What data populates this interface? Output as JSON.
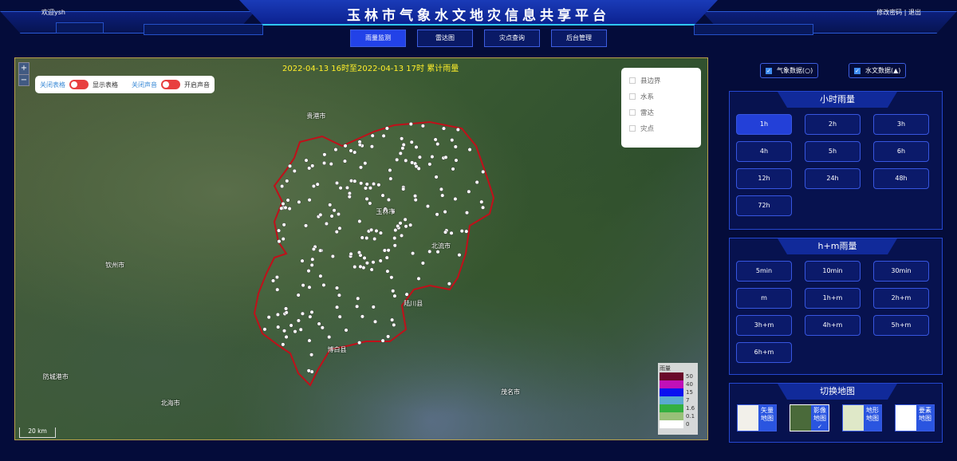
{
  "header": {
    "title": "玉林市气象水文地灾信息共享平台",
    "welcome": "欢迎ysh",
    "user_links": "修改密码 | 退出"
  },
  "nav": [
    {
      "label": "雨量监测",
      "active": true
    },
    {
      "label": "雷达图",
      "active": false
    },
    {
      "label": "灾点查询",
      "active": false
    },
    {
      "label": "后台管理",
      "active": false
    }
  ],
  "map": {
    "zoom_in": "+",
    "zoom_out": "−",
    "toggles": {
      "close_table": "关闭表格",
      "show_table": "显示表格",
      "close_sound": "关闭声音",
      "open_sound": "开启声音"
    },
    "title": "2022-04-13 16时至2022-04-13 17时 累计雨量",
    "layers": [
      "县边界",
      "水系",
      "雷达",
      "灾点"
    ],
    "labels": [
      {
        "t": "贵港市",
        "x": 42,
        "y": 14
      },
      {
        "t": "玉林市",
        "x": 52,
        "y": 39
      },
      {
        "t": "钦州市",
        "x": 13,
        "y": 53
      },
      {
        "t": "北海市",
        "x": 21,
        "y": 89
      },
      {
        "t": "防城港市",
        "x": 4,
        "y": 82
      },
      {
        "t": "茂名市",
        "x": 70,
        "y": 86
      },
      {
        "t": "博白县",
        "x": 45,
        "y": 75
      },
      {
        "t": "陆川县",
        "x": 56,
        "y": 63
      },
      {
        "t": "北流市",
        "x": 60,
        "y": 48
      }
    ],
    "legend": {
      "title": "雨量",
      "items": [
        {
          "v": "50",
          "c": "#6a0a2a"
        },
        {
          "v": "40",
          "c": "#c010b8"
        },
        {
          "v": "15",
          "c": "#0a10f0"
        },
        {
          "v": "7",
          "c": "#5aaad0"
        },
        {
          "v": "1.6",
          "c": "#34b040"
        },
        {
          "v": "0.1",
          "c": "#98c078"
        },
        {
          "v": "0",
          "c": "#ffffff"
        }
      ]
    },
    "scale": "20 km"
  },
  "checks": [
    {
      "label": "气象数据(○)",
      "checked": true
    },
    {
      "label": "水文数据(▲)",
      "checked": true
    }
  ],
  "hourly": {
    "title": "小时雨量",
    "buttons": [
      "1h",
      "2h",
      "3h",
      "4h",
      "5h",
      "6h",
      "12h",
      "24h",
      "48h",
      "72h"
    ],
    "active": "1h"
  },
  "hm": {
    "title": "h+m雨量",
    "buttons": [
      "5min",
      "10min",
      "30min",
      "m",
      "1h+m",
      "2h+m",
      "3h+m",
      "4h+m",
      "5h+m",
      "6h+m"
    ]
  },
  "switch": {
    "title": "切换地图",
    "maps": [
      {
        "label": "矢量地图",
        "selected": false
      },
      {
        "label": "影像地图",
        "selected": true
      },
      {
        "label": "地形地图",
        "selected": false
      },
      {
        "label": "要素地图",
        "selected": false
      }
    ]
  }
}
